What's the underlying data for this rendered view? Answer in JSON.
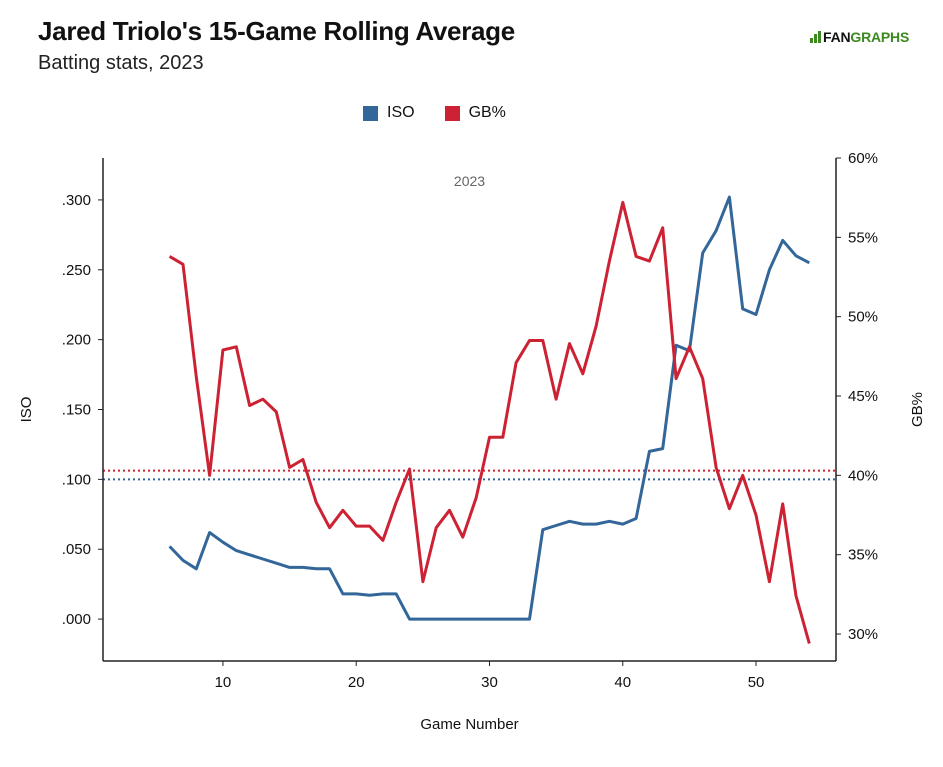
{
  "header": {
    "title": "Jared Triolo's 15-Game Rolling Average",
    "subtitle": "Batting stats, 2023",
    "logo_fan": "FAN",
    "logo_graphs": "GRAPHS"
  },
  "colors": {
    "iso": "#336699",
    "gb": "#cc2233",
    "logo_green": "#3a8a1f",
    "axis": "#222222"
  },
  "chart_data": {
    "type": "line",
    "annotation": "2023",
    "xlabel": "Game Number",
    "ylabel_left": "ISO",
    "ylabel_right": "GB%",
    "xlim": [
      1,
      56
    ],
    "ylim_left": [
      -0.03,
      0.33
    ],
    "ylim_right": [
      28.3,
      60
    ],
    "x_ticks": [
      10,
      20,
      30,
      40,
      50
    ],
    "y_left_ticks": [
      0.0,
      0.05,
      0.1,
      0.15,
      0.2,
      0.25,
      0.3
    ],
    "y_left_tick_labels": [
      ".000",
      ".050",
      ".100",
      ".150",
      ".200",
      ".250",
      ".300"
    ],
    "y_right_ticks": [
      30,
      35,
      40,
      45,
      50,
      55,
      60
    ],
    "y_right_tick_labels": [
      "30%",
      "35%",
      "40%",
      "45%",
      "50%",
      "55%",
      "60%"
    ],
    "legend_position": "top-center",
    "grid": false,
    "reference_lines": [
      {
        "series": "ISO",
        "axis": "left",
        "value": 0.1
      },
      {
        "series": "GB%",
        "axis": "right",
        "value": 40.3
      }
    ],
    "series": [
      {
        "name": "ISO",
        "axis": "left",
        "x": [
          6,
          7,
          8,
          9,
          10,
          11,
          12,
          13,
          14,
          15,
          16,
          17,
          18,
          19,
          20,
          21,
          22,
          23,
          24,
          25,
          26,
          27,
          28,
          29,
          30,
          31,
          32,
          33,
          34,
          35,
          36,
          37,
          38,
          39,
          40,
          41,
          42,
          43,
          44,
          45,
          46,
          47,
          48,
          49,
          50,
          51,
          52,
          53,
          54
        ],
        "values": [
          0.052,
          0.042,
          0.036,
          0.062,
          0.055,
          0.049,
          0.046,
          0.043,
          0.04,
          0.037,
          0.037,
          0.036,
          0.036,
          0.018,
          0.018,
          0.017,
          0.018,
          0.018,
          0.0,
          0.0,
          0.0,
          0.0,
          0.0,
          0.0,
          0.0,
          0.0,
          0.0,
          0.0,
          0.064,
          0.067,
          0.07,
          0.068,
          0.068,
          0.07,
          0.068,
          0.072,
          0.12,
          0.122,
          0.196,
          0.192,
          0.262,
          0.278,
          0.302,
          0.222,
          0.218,
          0.25,
          0.271,
          0.26,
          0.255
        ]
      },
      {
        "name": "GB%",
        "axis": "right",
        "x": [
          6,
          7,
          8,
          9,
          10,
          11,
          12,
          13,
          14,
          15,
          16,
          17,
          18,
          19,
          20,
          21,
          22,
          23,
          24,
          25,
          26,
          27,
          28,
          29,
          30,
          31,
          32,
          33,
          34,
          35,
          36,
          37,
          38,
          39,
          40,
          41,
          42,
          43,
          44,
          45,
          46,
          47,
          48,
          49,
          50,
          51,
          52,
          53,
          54
        ],
        "values": [
          53.8,
          53.3,
          46.2,
          40.0,
          47.9,
          48.1,
          44.4,
          44.8,
          44.0,
          40.5,
          41.0,
          38.3,
          36.7,
          37.8,
          36.8,
          36.8,
          35.9,
          38.3,
          40.4,
          33.3,
          36.7,
          37.8,
          36.1,
          38.6,
          42.4,
          42.4,
          47.1,
          48.5,
          48.5,
          44.8,
          48.3,
          46.4,
          49.4,
          53.5,
          57.2,
          53.8,
          53.5,
          55.6,
          46.1,
          48.1,
          46.1,
          40.5,
          37.9,
          40.0,
          37.5,
          33.3,
          38.2,
          32.4,
          29.4
        ]
      }
    ]
  }
}
